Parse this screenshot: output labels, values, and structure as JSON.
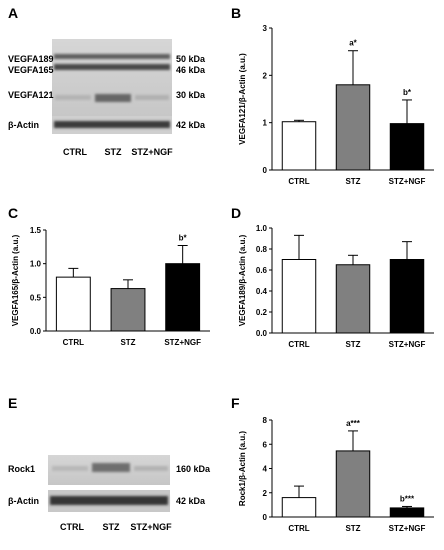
{
  "panels": {
    "A": {
      "letter": "A",
      "band_labels": [
        "VEGFA189",
        "VEGFA165",
        "VEGFA121"
      ],
      "loading_label": "β-Actin",
      "sizes": [
        "50 kDa",
        "46 kDa",
        "30 kDa",
        "42 kDa"
      ],
      "lanes": [
        "CTRL",
        "STZ",
        "STZ+NGF"
      ]
    },
    "E": {
      "letter": "E",
      "band_labels": [
        "Rock1"
      ],
      "loading_label": "β-Actin",
      "sizes": [
        "160 kDa",
        "42 kDa"
      ],
      "lanes": [
        "CTRL",
        "STZ",
        "STZ+NGF"
      ]
    }
  },
  "colors": {
    "ctrl": "#ffffff",
    "stz": "#808080",
    "stz_ngf": "#000000",
    "axis": "#000000"
  },
  "chart_data": [
    {
      "panel": "B",
      "type": "bar",
      "categories": [
        "CTRL",
        "STZ",
        "STZ+NGF"
      ],
      "values": [
        1.02,
        1.8,
        0.98
      ],
      "errors": [
        0.03,
        0.72,
        0.5
      ],
      "annotations": [
        "",
        "a*",
        "b*"
      ],
      "ylabel": "VEGFA121/β-Actin (a.u.)",
      "xlabel": "",
      "ylim": [
        0,
        3
      ],
      "yticks": [
        0,
        1,
        2,
        3
      ],
      "ytick_labels": [
        "0",
        "1",
        "2",
        "3"
      ]
    },
    {
      "panel": "C",
      "type": "bar",
      "categories": [
        "CTRL",
        "STZ",
        "STZ+NGF"
      ],
      "values": [
        0.8,
        0.63,
        1.0
      ],
      "errors": [
        0.13,
        0.13,
        0.27
      ],
      "annotations": [
        "",
        "",
        "b*"
      ],
      "ylabel": "VEGFA165/β-Actin (a.u.)",
      "xlabel": "",
      "ylim": [
        0,
        1.5
      ],
      "yticks": [
        0,
        0.5,
        1.0,
        1.5
      ],
      "ytick_labels": [
        "0.0",
        "0.5",
        "1.0",
        "1.5"
      ]
    },
    {
      "panel": "D",
      "type": "bar",
      "categories": [
        "CTRL",
        "STZ",
        "STZ+NGF"
      ],
      "values": [
        0.7,
        0.65,
        0.7
      ],
      "errors": [
        0.23,
        0.09,
        0.17
      ],
      "annotations": [
        "",
        "",
        ""
      ],
      "ylabel": "VEGFA189/β-Actin (a.u.)",
      "xlabel": "",
      "ylim": [
        0,
        1.0
      ],
      "yticks": [
        0,
        0.2,
        0.4,
        0.6,
        0.8,
        1.0
      ],
      "ytick_labels": [
        "0.0",
        "0.2",
        "0.4",
        "0.6",
        "0.8",
        "1.0"
      ]
    },
    {
      "panel": "F",
      "type": "bar",
      "categories": [
        "CTRL",
        "STZ",
        "STZ+NGF"
      ],
      "values": [
        1.6,
        5.45,
        0.75
      ],
      "errors": [
        0.95,
        1.65,
        0.12
      ],
      "annotations": [
        "",
        "a***",
        "b***"
      ],
      "ylabel": "Rock1/β-Actin (a.u.)",
      "xlabel": "",
      "ylim": [
        0,
        8
      ],
      "yticks": [
        0,
        2,
        4,
        6,
        8
      ],
      "ytick_labels": [
        "0",
        "2",
        "4",
        "6",
        "8"
      ]
    }
  ]
}
